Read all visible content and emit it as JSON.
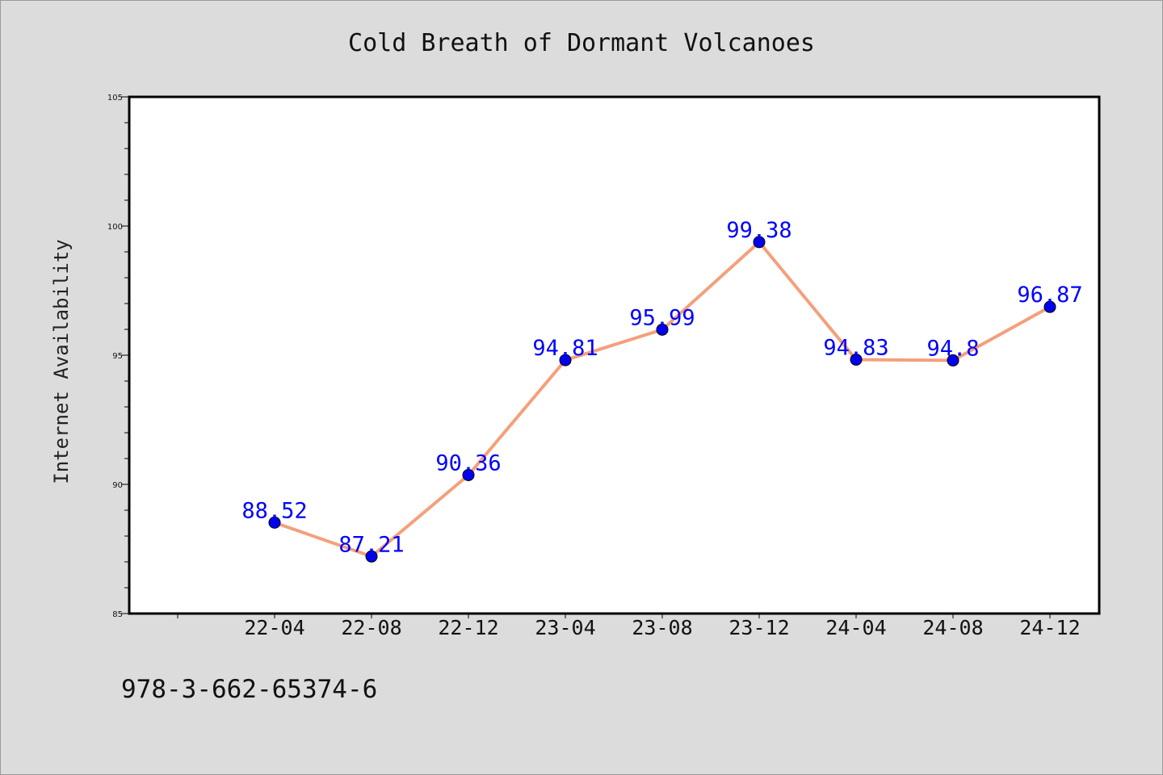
{
  "chart_data": {
    "type": "line",
    "title": "Cold Breath of Dormant Volcanoes",
    "xlabel": "",
    "ylabel": "Internet Availability",
    "categories": [
      "22-04",
      "22-08",
      "22-12",
      "23-04",
      "23-08",
      "23-12",
      "24-04",
      "24-08",
      "24-12"
    ],
    "series": [
      {
        "values": [
          88.52,
          87.21,
          90.36,
          94.81,
          95.99,
          99.38,
          94.83,
          94.8,
          96.87
        ],
        "labels": [
          "88.52",
          "87.21",
          "90.36",
          "94.81",
          "95.99",
          "99.38",
          "94.83",
          "94.8",
          "96.87"
        ]
      }
    ],
    "ylim": [
      85,
      105
    ],
    "yticks": [
      "85",
      "90",
      "95",
      "100",
      "105"
    ],
    "grid": false,
    "legend": "none",
    "colors": {
      "line": "#f4a07c",
      "marker": "#0000ee",
      "marker_edge": "#000000",
      "data_label": "#0000ff",
      "background": "#dcdcdc",
      "plot_background": "#ffffff"
    }
  },
  "footer": {
    "isbn": "978-3-662-65374-6"
  }
}
